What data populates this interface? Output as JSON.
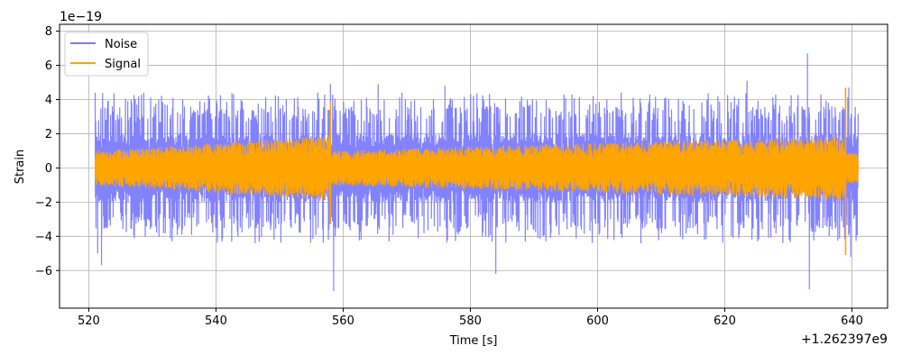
{
  "chart_data": {
    "type": "line",
    "xlabel": "Time [s]",
    "ylabel": "Strain",
    "x_offset_label": "+1.262397e9",
    "y_scale_label": "1e−19",
    "xlim": [
      515.4,
      645.6
    ],
    "ylim": [
      -8.2,
      8.4
    ],
    "x_ticks": [
      520,
      540,
      560,
      580,
      600,
      620,
      640
    ],
    "x_tick_labels": [
      "520",
      "540",
      "560",
      "580",
      "600",
      "620",
      "640"
    ],
    "y_ticks": [
      -6,
      -4,
      -2,
      0,
      2,
      4,
      6,
      8
    ],
    "y_tick_labels": [
      "−6",
      "−4",
      "−2",
      "0",
      "2",
      "4",
      "6",
      "8"
    ],
    "grid": true,
    "legend_position": "top-left",
    "x_start": 521.0,
    "x_end": 641.0,
    "series": [
      {
        "name": "Noise",
        "color": "#7b7bff",
        "typical_peak_abs": 4.2,
        "dense_band_abs": 2.0,
        "extremes": [
          {
            "x": 521.4,
            "y": -5.0
          },
          {
            "x": 522.0,
            "y": -5.7
          },
          {
            "x": 558.0,
            "y": 4.9
          },
          {
            "x": 558.5,
            "y": -7.2
          },
          {
            "x": 565.5,
            "y": 4.9
          },
          {
            "x": 576.0,
            "y": 4.8
          },
          {
            "x": 584.0,
            "y": -6.2
          },
          {
            "x": 623.5,
            "y": 5.1
          },
          {
            "x": 633.0,
            "y": 6.7
          },
          {
            "x": 633.3,
            "y": -7.1
          },
          {
            "x": 639.5,
            "y": 4.7
          },
          {
            "x": 639.8,
            "y": -5.2
          }
        ]
      },
      {
        "name": "Signal",
        "color": "#ffa500",
        "segments": [
          {
            "x_start": 521.0,
            "x_end": 558.0,
            "amp_start": 1.0,
            "amp_end": 1.9
          },
          {
            "x_start": 558.0,
            "x_end": 639.0,
            "amp_start": 1.0,
            "amp_end": 1.9
          },
          {
            "x_start": 639.0,
            "x_end": 641.0,
            "amp_start": 0.9,
            "amp_end": 0.9
          }
        ],
        "spikes": [
          {
            "x": 558.0,
            "y_top": 3.9,
            "y_bottom": -3.3
          },
          {
            "x": 639.0,
            "y_top": 4.7,
            "y_bottom": -5.1
          }
        ]
      }
    ]
  }
}
